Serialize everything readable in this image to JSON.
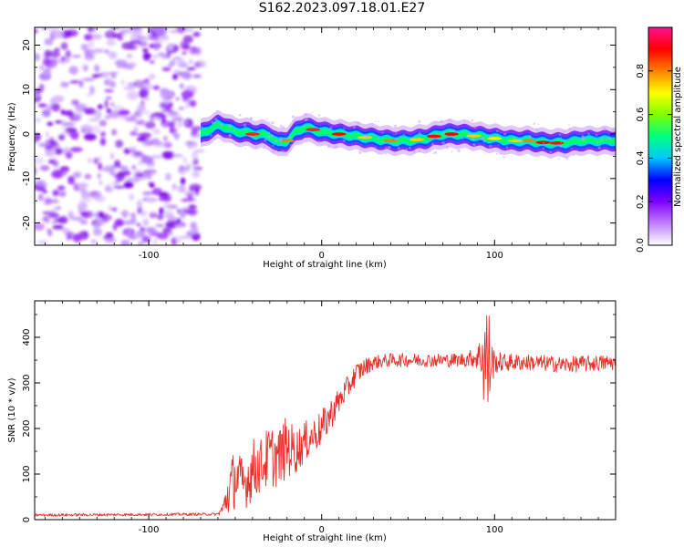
{
  "figure": {
    "title": "S162.2023.097.18.01.E27"
  },
  "chart_data": [
    {
      "type": "heatmap",
      "xlabel": "Height of straight line (km)",
      "ylabel": "Frequency (Hz)",
      "xlim": [
        -166,
        170
      ],
      "ylim": [
        -25,
        24
      ],
      "x_ticks": [
        -100,
        0,
        100
      ],
      "x_tick_labels": [
        "-100",
        "0",
        "100"
      ],
      "y_ticks": [
        -20,
        -10,
        0,
        10,
        20
      ],
      "y_tick_labels": [
        "-20",
        "-10",
        "0",
        "10",
        "20"
      ],
      "noise_region_x": [
        -166,
        -70
      ],
      "signal_ridge": {
        "x": [
          -70,
          -65,
          -60,
          -55,
          -50,
          -45,
          -40,
          -35,
          -30,
          -25,
          -20,
          -15,
          -10,
          -5,
          0,
          10,
          20,
          30,
          40,
          50,
          60,
          70,
          80,
          90,
          100,
          110,
          120,
          130,
          140,
          150,
          160,
          170
        ],
        "y": [
          0,
          1,
          2,
          1.5,
          0.5,
          0.5,
          0,
          0,
          -0.5,
          -2,
          -1.5,
          0.5,
          1.5,
          1,
          0.5,
          0,
          -0.5,
          -1,
          -1.5,
          -1.5,
          -1,
          0,
          0,
          -0.5,
          -1,
          -1.5,
          -1.5,
          -2,
          -2,
          -1.5,
          -1.5,
          -1.5
        ]
      },
      "colorbar": {
        "label": "Normalized spectral amplitude",
        "range": [
          0,
          1
        ],
        "ticks": [
          0,
          0.2,
          0.4,
          0.6,
          0.8
        ],
        "tick_labels": [
          "0.0",
          "0.2",
          "0.4",
          "0.6",
          "0.8"
        ],
        "colors": [
          "#ffffff",
          "#c080ff",
          "#8000ff",
          "#0000ff",
          "#00c8ff",
          "#00ff80",
          "#80ff00",
          "#ffff00",
          "#ff8000",
          "#ff0000",
          "#ff1090"
        ]
      }
    },
    {
      "type": "line",
      "xlabel": "Height of straight line (km)",
      "ylabel": "SNR (10 * v/v)",
      "xlim": [
        -166,
        170
      ],
      "ylim": [
        0,
        480
      ],
      "x_ticks": [
        -100,
        0,
        100
      ],
      "x_tick_labels": [
        "-100",
        "0",
        "100"
      ],
      "y_ticks": [
        0,
        100,
        200,
        300,
        400
      ],
      "y_tick_labels": [
        "0",
        "100",
        "200",
        "300",
        "400"
      ],
      "color": "#e8302a",
      "envelope": {
        "x": [
          -166,
          -60,
          -57,
          -54,
          -50,
          -45,
          -40,
          -35,
          -30,
          -25,
          -20,
          -15,
          -10,
          -5,
          0,
          5,
          10,
          15,
          20,
          25,
          30,
          40,
          60,
          80,
          88,
          92,
          94,
          96,
          98,
          100,
          105,
          120,
          140,
          170
        ],
        "y": [
          10,
          12,
          25,
          60,
          95,
          75,
          110,
          120,
          140,
          135,
          160,
          150,
          170,
          185,
          200,
          230,
          260,
          290,
          320,
          335,
          345,
          350,
          350,
          350,
          355,
          360,
          360,
          340,
          345,
          345,
          345,
          345,
          340,
          345
        ],
        "noise": [
          3,
          3,
          15,
          55,
          70,
          55,
          70,
          60,
          70,
          65,
          70,
          50,
          45,
          40,
          40,
          35,
          30,
          25,
          25,
          20,
          15,
          15,
          15,
          15,
          20,
          40,
          130,
          170,
          60,
          25,
          20,
          18,
          18,
          18
        ]
      }
    }
  ]
}
